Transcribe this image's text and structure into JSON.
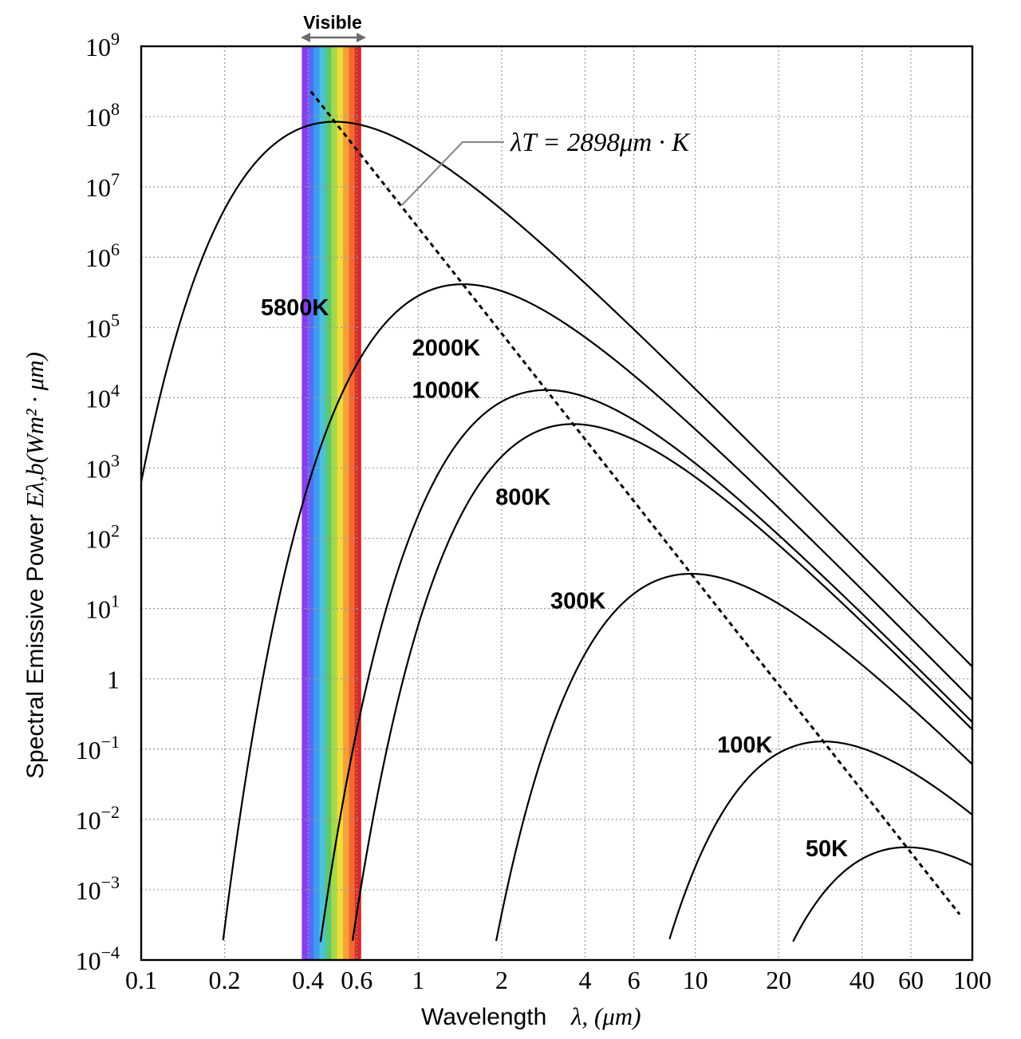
{
  "chart_data": {
    "type": "line",
    "xscale": "log",
    "yscale": "log",
    "xlim": [
      0.1,
      100
    ],
    "ylim": [
      0.0001,
      1000000000
    ],
    "grid": true,
    "xlabel_text": "Wavelength",
    "xlabel_symbol": "λ, (μm)",
    "ylabel_text": "Spectral Emissive Power",
    "ylabel_symbol": "Eλ,b(Wm² · μm)",
    "x_ticks": [
      {
        "v": 0.1,
        "label": "0.1"
      },
      {
        "v": 0.2,
        "label": "0.2"
      },
      {
        "v": 0.4,
        "label": "0.4"
      },
      {
        "v": 0.6,
        "label": "0.6"
      },
      {
        "v": 1,
        "label": "1"
      },
      {
        "v": 2,
        "label": "2"
      },
      {
        "v": 4,
        "label": "4"
      },
      {
        "v": 6,
        "label": "6"
      },
      {
        "v": 10,
        "label": "10"
      },
      {
        "v": 20,
        "label": "20"
      },
      {
        "v": 40,
        "label": "40"
      },
      {
        "v": 60,
        "label": "60"
      },
      {
        "v": 100,
        "label": "100"
      }
    ],
    "y_ticks": [
      {
        "exp": 9,
        "base": "10",
        "sup": "9"
      },
      {
        "exp": 8,
        "base": "10",
        "sup": "8"
      },
      {
        "exp": 7,
        "base": "10",
        "sup": "7"
      },
      {
        "exp": 6,
        "base": "10",
        "sup": "6"
      },
      {
        "exp": 5,
        "base": "10",
        "sup": "5"
      },
      {
        "exp": 4,
        "base": "10",
        "sup": "4"
      },
      {
        "exp": 3,
        "base": "10",
        "sup": "3"
      },
      {
        "exp": 2,
        "base": "10",
        "sup": "2"
      },
      {
        "exp": 1,
        "base": "10",
        "sup": "1"
      },
      {
        "exp": 0,
        "base": "1",
        "sup": ""
      },
      {
        "exp": -1,
        "base": "10",
        "sup": "−1"
      },
      {
        "exp": -2,
        "base": "10",
        "sup": "−2"
      },
      {
        "exp": -3,
        "base": "10",
        "sup": "−3"
      },
      {
        "exp": -4,
        "base": "10",
        "sup": "−4"
      }
    ],
    "series": [
      {
        "name": "5800K",
        "temperature": 5800,
        "label_at": [
          0.27,
          150000
        ]
      },
      {
        "name": "2000K",
        "temperature": 2000,
        "label_at": [
          0.95,
          40000
        ]
      },
      {
        "name": "1000K",
        "temperature": 1000,
        "label_at": [
          0.95,
          10000
        ]
      },
      {
        "name": "800K",
        "temperature": 800,
        "label_at": [
          1.9,
          300
        ]
      },
      {
        "name": "300K",
        "temperature": 300,
        "label_at": [
          3.0,
          10
        ]
      },
      {
        "name": "100K",
        "temperature": 100,
        "label_at": [
          12,
          0.09
        ]
      },
      {
        "name": "50K",
        "temperature": 50,
        "label_at": [
          25,
          0.003
        ]
      }
    ],
    "wien_line": {
      "label": "λT = 2898μm · K",
      "constant": 2898,
      "x_range": [
        0.41,
        90
      ]
    },
    "visible_band": {
      "label": "Visible",
      "range": [
        0.38,
        0.62
      ],
      "colors": [
        "#8a3cf0",
        "#5a6af5",
        "#3c9cf0",
        "#4cc0d8",
        "#5cc870",
        "#a6d84a",
        "#f0dc3a",
        "#f5a03a",
        "#ef6a30",
        "#dc2828"
      ]
    }
  }
}
